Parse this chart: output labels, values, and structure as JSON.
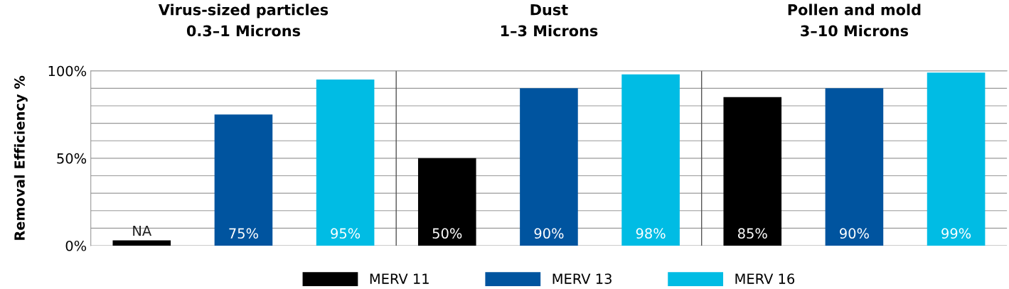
{
  "chart_data": {
    "type": "bar",
    "ylabel": "Removal Efficiency %",
    "categories": [
      "Virus-sized particles\n0.3–1 Microns",
      "Dust\n1–3 Microns",
      "Pollen and mold\n3–10 Microns"
    ],
    "series": [
      {
        "name": "MERV 11",
        "color": "#000000",
        "values": [
          3,
          50,
          85
        ],
        "value_labels": [
          "NA",
          "50%",
          "85%"
        ]
      },
      {
        "name": "MERV 13",
        "color": "#00549f",
        "values": [
          75,
          90,
          90
        ],
        "value_labels": [
          "75%",
          "90%",
          "90%"
        ]
      },
      {
        "name": "MERV 16",
        "color": "#00bce4",
        "values": [
          95,
          98,
          99
        ],
        "value_labels": [
          "95%",
          "98%",
          "99%"
        ]
      }
    ],
    "ylim": [
      0,
      100
    ],
    "yticks": [
      {
        "value": 0,
        "label": "0%"
      },
      {
        "value": 10,
        "label": null
      },
      {
        "value": 20,
        "label": null
      },
      {
        "value": 30,
        "label": null
      },
      {
        "value": 40,
        "label": null
      },
      {
        "value": 50,
        "label": "50%"
      },
      {
        "value": 60,
        "label": null
      },
      {
        "value": 70,
        "label": null
      },
      {
        "value": 80,
        "label": null
      },
      {
        "value": 90,
        "label": null
      },
      {
        "value": 100,
        "label": "100%"
      }
    ],
    "grid": "y",
    "legend": "bottom"
  }
}
